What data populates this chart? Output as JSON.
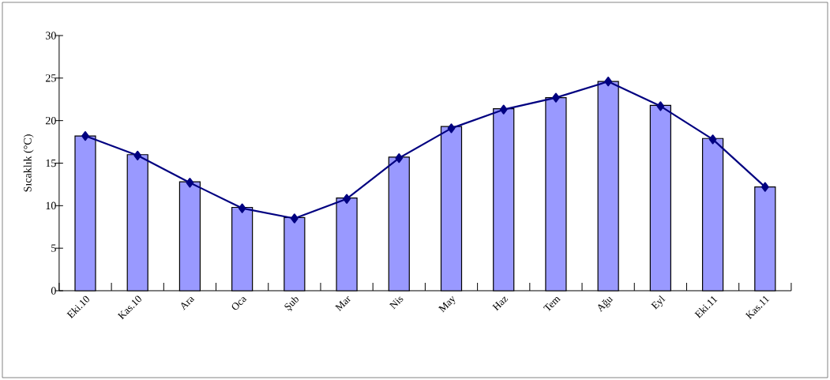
{
  "chart_data": {
    "type": "bar",
    "ylabel": "Sıcaklık (°C)",
    "categories": [
      "Eki.10",
      "Kas.10",
      "Ara",
      "Oca",
      "Şub",
      "Mar",
      "Nis",
      "May",
      "Haz",
      "Tem",
      "Ağu",
      "Eyl",
      "Eki.11",
      "Kas.11"
    ],
    "series": [
      {
        "color": "#9999ff",
        "values": [
          18.2,
          16.0,
          12.8,
          9.8,
          8.6,
          10.9,
          15.7,
          19.3,
          21.4,
          22.7,
          24.6,
          21.8,
          17.9,
          12.2
        ]
      },
      {
        "type": "line",
        "color": "#000080",
        "marker": "diamond",
        "line_style": "solid",
        "values": [
          18.2,
          15.9,
          12.7,
          9.7,
          8.5,
          10.8,
          15.6,
          19.1,
          21.3,
          22.7,
          24.6,
          21.7,
          17.8,
          12.2
        ]
      }
    ],
    "ylim": [
      0,
      30
    ],
    "yticks": [
      0,
      5,
      10,
      15,
      20,
      25,
      30
    ]
  }
}
